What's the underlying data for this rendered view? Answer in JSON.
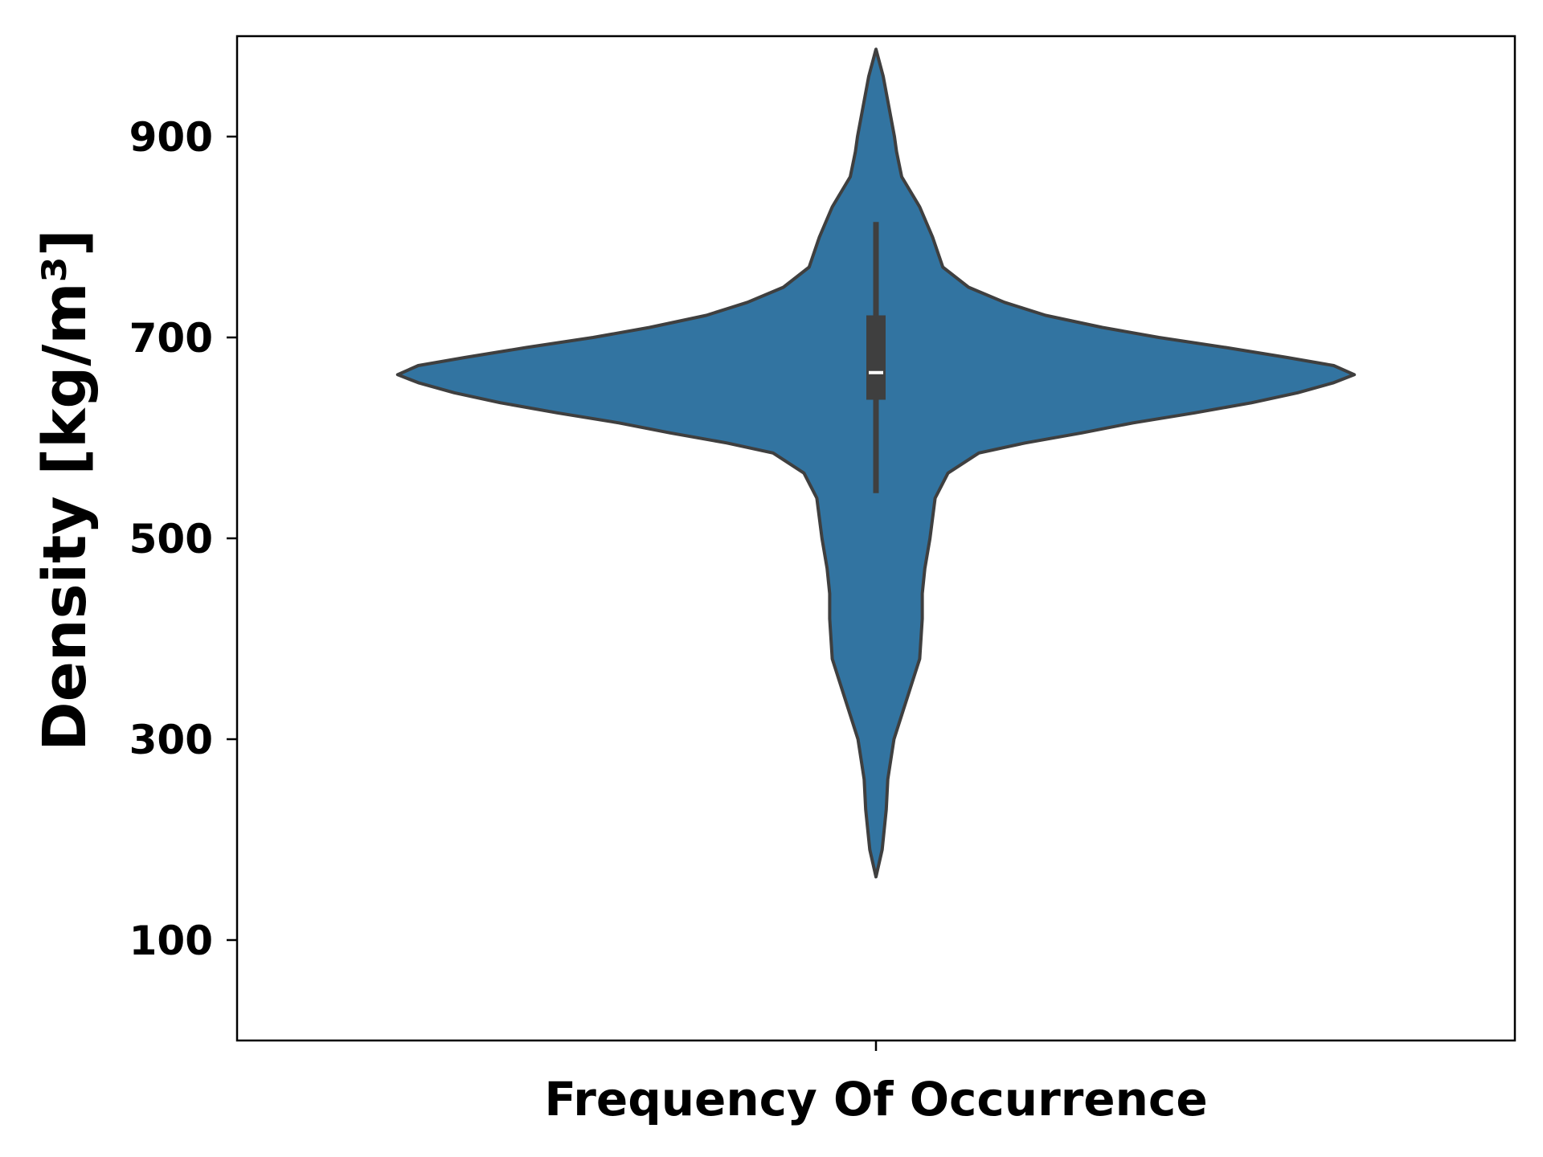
{
  "chart_data": {
    "type": "violin",
    "xlabel": "Frequency Of Occurrence",
    "ylabel": "Density [kg/m³]",
    "ylim": [
      0,
      1000
    ],
    "yticks": [
      100,
      300,
      500,
      700,
      900
    ],
    "grid": false,
    "legend": "none",
    "colors": {
      "fill": "#3274a1",
      "outline": "#3f3f3f",
      "box": "#3f3f3f",
      "median": "#ffffff"
    },
    "distribution": {
      "min": 163,
      "max": 987,
      "q1": 638,
      "median": 665,
      "q3": 722,
      "whisker_low": 545,
      "whisker_high": 815,
      "profile": [
        [
          163,
          0.0
        ],
        [
          190,
          0.012
        ],
        [
          230,
          0.02
        ],
        [
          260,
          0.023
        ],
        [
          300,
          0.035
        ],
        [
          340,
          0.06
        ],
        [
          380,
          0.085
        ],
        [
          420,
          0.09
        ],
        [
          445,
          0.09
        ],
        [
          470,
          0.095
        ],
        [
          500,
          0.105
        ],
        [
          540,
          0.115
        ],
        [
          565,
          0.14
        ],
        [
          585,
          0.2
        ],
        [
          595,
          0.29
        ],
        [
          605,
          0.4
        ],
        [
          615,
          0.5
        ],
        [
          625,
          0.62
        ],
        [
          635,
          0.73
        ],
        [
          645,
          0.82
        ],
        [
          655,
          0.89
        ],
        [
          663,
          0.93
        ],
        [
          672,
          0.89
        ],
        [
          680,
          0.8
        ],
        [
          690,
          0.68
        ],
        [
          700,
          0.55
        ],
        [
          710,
          0.44
        ],
        [
          722,
          0.33
        ],
        [
          735,
          0.25
        ],
        [
          750,
          0.18
        ],
        [
          770,
          0.13
        ],
        [
          800,
          0.11
        ],
        [
          830,
          0.085
        ],
        [
          860,
          0.05
        ],
        [
          885,
          0.04
        ],
        [
          900,
          0.036
        ],
        [
          930,
          0.025
        ],
        [
          960,
          0.014
        ],
        [
          987,
          0.0
        ]
      ]
    }
  }
}
